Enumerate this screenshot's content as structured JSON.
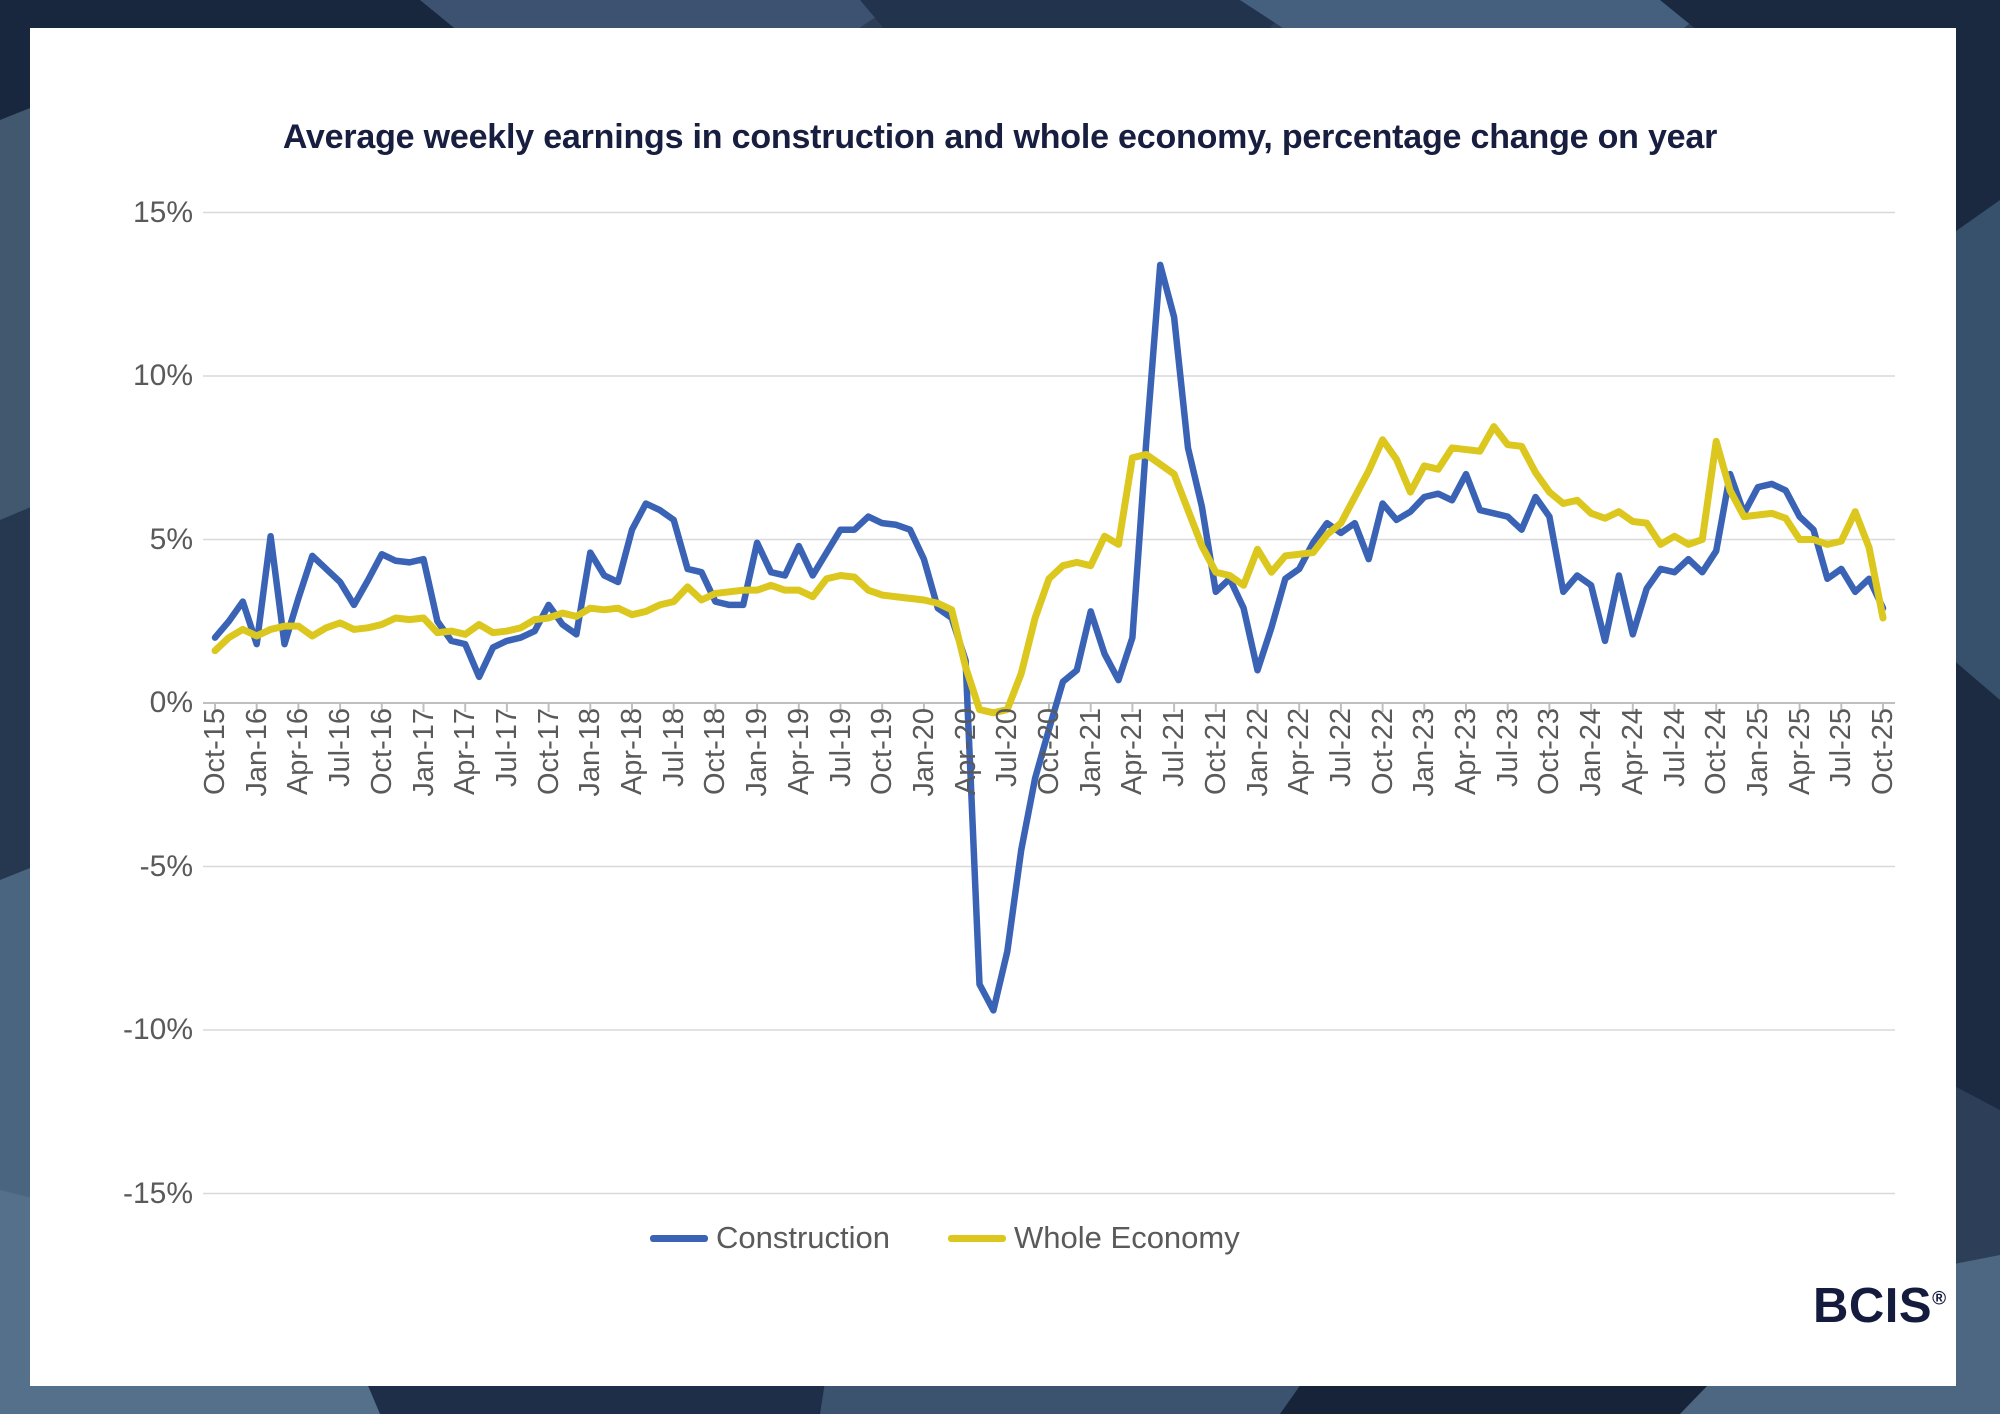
{
  "page": {
    "title": "Average weekly earnings in construction and whole economy, percentage change on year"
  },
  "logo": {
    "text": "BCIS",
    "registered": "®"
  },
  "colors": {
    "construction": "#3a63b5",
    "whole_economy": "#dcc71e",
    "title_navy": "#181e3f",
    "axis_text_gray": "#5a5a5a",
    "gridline": "#d9d9d9",
    "axis_line": "#bfbfbf",
    "card_background": "#ffffff"
  },
  "legend": {
    "items": [
      {
        "label": "Construction",
        "color": "#3a63b5"
      },
      {
        "label": "Whole Economy",
        "color": "#dcc71e"
      }
    ]
  },
  "chart_data": {
    "type": "line",
    "title": "Average weekly earnings in construction and whole economy, percentage change on year",
    "xlabel": "",
    "ylabel": "",
    "ylim": [
      -15,
      15
    ],
    "y_tick_labels": [
      "15%",
      "10%",
      "5%",
      "0%",
      "-5%",
      "-10%",
      "-15%"
    ],
    "y_tick_values": [
      15,
      10,
      5,
      0,
      -5,
      -10,
      -15
    ],
    "x_tick_every_n_months": 3,
    "grid": true,
    "legend_position": "bottom",
    "months": [
      "Oct-15",
      "Nov-15",
      "Dec-15",
      "Jan-16",
      "Feb-16",
      "Mar-16",
      "Apr-16",
      "May-16",
      "Jun-16",
      "Jul-16",
      "Aug-16",
      "Sep-16",
      "Oct-16",
      "Nov-16",
      "Dec-16",
      "Jan-17",
      "Feb-17",
      "Mar-17",
      "Apr-17",
      "May-17",
      "Jun-17",
      "Jul-17",
      "Aug-17",
      "Sep-17",
      "Oct-17",
      "Nov-17",
      "Dec-17",
      "Jan-18",
      "Feb-18",
      "Mar-18",
      "Apr-18",
      "May-18",
      "Jun-18",
      "Jul-18",
      "Aug-18",
      "Sep-18",
      "Oct-18",
      "Nov-18",
      "Dec-18",
      "Jan-19",
      "Feb-19",
      "Mar-19",
      "Apr-19",
      "May-19",
      "Jun-19",
      "Jul-19",
      "Aug-19",
      "Sep-19",
      "Oct-19",
      "Nov-19",
      "Dec-19",
      "Jan-20",
      "Feb-20",
      "Mar-20",
      "Apr-20",
      "May-20",
      "Jun-20",
      "Jul-20",
      "Aug-20",
      "Sep-20",
      "Oct-20",
      "Nov-20",
      "Dec-20",
      "Jan-21",
      "Feb-21",
      "Mar-21",
      "Apr-21",
      "May-21",
      "Jun-21",
      "Jul-21",
      "Aug-21",
      "Sep-21",
      "Oct-21",
      "Nov-21",
      "Dec-21",
      "Jan-22",
      "Feb-22",
      "Mar-22",
      "Apr-22",
      "May-22",
      "Jun-22",
      "Jul-22",
      "Aug-22",
      "Sep-22",
      "Oct-22",
      "Nov-22",
      "Dec-22",
      "Jan-23",
      "Feb-23",
      "Mar-23",
      "Apr-23",
      "May-23",
      "Jun-23",
      "Jul-23",
      "Aug-23",
      "Sep-23",
      "Oct-23",
      "Nov-23",
      "Dec-23",
      "Jan-24",
      "Feb-24",
      "Mar-24",
      "Apr-24",
      "May-24",
      "Jun-24",
      "Jul-24",
      "Aug-24",
      "Sep-24",
      "Oct-24",
      "Nov-24",
      "Dec-24",
      "Jan-25",
      "Feb-25",
      "Mar-25",
      "Apr-25",
      "May-25",
      "Jun-25",
      "Jul-25",
      "Aug-25",
      "Sep-25",
      "Oct-25"
    ],
    "series": [
      {
        "name": "Construction",
        "values": [
          2.0,
          2.5,
          3.1,
          1.8,
          5.1,
          1.8,
          3.2,
          4.5,
          4.1,
          3.7,
          3.0,
          3.75,
          4.55,
          4.35,
          4.3,
          4.4,
          2.5,
          1.9,
          1.8,
          0.8,
          1.7,
          1.9,
          2.0,
          2.2,
          3.0,
          2.4,
          2.1,
          4.6,
          3.9,
          3.7,
          5.3,
          6.1,
          5.9,
          5.6,
          4.1,
          4.0,
          3.1,
          3.0,
          3.0,
          4.9,
          4.0,
          3.9,
          4.8,
          3.9,
          4.6,
          5.3,
          5.3,
          5.7,
          5.5,
          5.45,
          5.3,
          4.4,
          2.9,
          2.6,
          1.3,
          -8.6,
          -9.4,
          -7.6,
          -4.5,
          -2.3,
          -0.8,
          0.65,
          1.0,
          2.8,
          1.5,
          0.7,
          2.0,
          8.0,
          13.4,
          11.8,
          7.8,
          6.0,
          3.4,
          3.8,
          2.9,
          1.0,
          2.3,
          3.8,
          4.1,
          4.9,
          5.5,
          5.2,
          5.5,
          4.4,
          6.1,
          5.6,
          5.85,
          6.3,
          6.4,
          6.2,
          7.0,
          5.9,
          5.8,
          5.7,
          5.3,
          6.3,
          5.7,
          3.4,
          3.9,
          3.6,
          1.9,
          3.9,
          2.1,
          3.5,
          4.1,
          4.0,
          4.4,
          4.0,
          4.65,
          7.0,
          5.8,
          6.6,
          6.7,
          6.5,
          5.7,
          5.3,
          3.8,
          4.1,
          3.4,
          3.8,
          2.9
        ]
      },
      {
        "name": "Whole Economy",
        "values": [
          1.6,
          2.0,
          2.25,
          2.05,
          2.25,
          2.35,
          2.35,
          2.05,
          2.3,
          2.45,
          2.25,
          2.3,
          2.4,
          2.6,
          2.55,
          2.6,
          2.15,
          2.2,
          2.1,
          2.4,
          2.15,
          2.2,
          2.3,
          2.55,
          2.6,
          2.75,
          2.65,
          2.9,
          2.85,
          2.9,
          2.7,
          2.8,
          3.0,
          3.1,
          3.55,
          3.15,
          3.35,
          3.4,
          3.45,
          3.45,
          3.6,
          3.45,
          3.45,
          3.25,
          3.8,
          3.9,
          3.85,
          3.45,
          3.3,
          3.25,
          3.2,
          3.15,
          3.05,
          2.85,
          1.1,
          -0.2,
          -0.3,
          -0.2,
          0.9,
          2.6,
          3.8,
          4.2,
          4.3,
          4.2,
          5.1,
          4.85,
          7.5,
          7.6,
          7.3,
          7.0,
          5.9,
          4.8,
          4.0,
          3.9,
          3.6,
          4.7,
          4.0,
          4.5,
          4.55,
          4.6,
          5.15,
          5.5,
          6.3,
          7.1,
          8.05,
          7.45,
          6.45,
          7.25,
          7.15,
          7.8,
          7.75,
          7.7,
          8.45,
          7.9,
          7.85,
          7.05,
          6.45,
          6.1,
          6.2,
          5.8,
          5.65,
          5.85,
          5.55,
          5.5,
          4.85,
          5.1,
          4.85,
          5.0,
          8.0,
          6.5,
          5.7,
          5.75,
          5.8,
          5.65,
          5.0,
          5.0,
          4.85,
          4.95,
          5.85,
          4.75,
          2.6
        ]
      }
    ]
  }
}
